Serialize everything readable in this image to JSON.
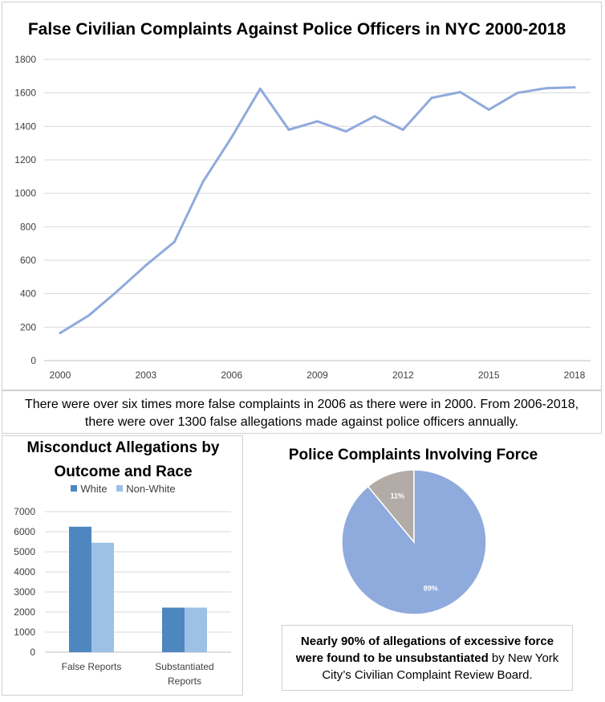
{
  "line_chart": {
    "title": "False Civilian Complaints Against Police Officers in NYC 2000-2018",
    "caption": "There were over six times more false complaints in 2006 as there were in 2000. From 2006-2018, there were over 1300 false allegations made against police officers annually."
  },
  "bar_chart": {
    "title_line1": "Misconduct Allegations by",
    "title_line2": "Outcome and Race"
  },
  "pie_chart": {
    "title": "Police Complaints Involving Force",
    "note_bold": "Nearly 90% of allegations of excessive force were found to be unsubstantiated",
    "note_rest": " by New York City’s Civilian Complaint Review Board."
  },
  "chart_data": [
    {
      "type": "line",
      "title": "False Civilian Complaints Against Police Officers in NYC 2000-2018",
      "x": [
        2000,
        2001,
        2002,
        2003,
        2004,
        2005,
        2006,
        2007,
        2008,
        2009,
        2010,
        2011,
        2012,
        2013,
        2014,
        2015,
        2016,
        2017,
        2018
      ],
      "y": [
        165,
        270,
        415,
        570,
        710,
        1070,
        1335,
        1625,
        1380,
        1430,
        1370,
        1460,
        1380,
        1570,
        1605,
        1500,
        1600,
        1628,
        1633
      ],
      "x_ticks": [
        2000,
        2003,
        2006,
        2009,
        2012,
        2015,
        2018
      ],
      "y_ticks": [
        0,
        200,
        400,
        600,
        800,
        1000,
        1200,
        1400,
        1600,
        1800
      ],
      "ylim": [
        0,
        1800
      ],
      "grid": true,
      "color": "#8faadc"
    },
    {
      "type": "bar",
      "title": "Misconduct Allegations by Outcome and Race",
      "categories": [
        "False Reports",
        "Substantiated Reports"
      ],
      "series": [
        {
          "name": "White",
          "values": [
            6250,
            2220
          ],
          "color": "#4e87c0"
        },
        {
          "name": "Non-White",
          "values": [
            5450,
            2220
          ],
          "color": "#9dc0e6"
        }
      ],
      "y_ticks": [
        0,
        1000,
        2000,
        3000,
        4000,
        5000,
        6000,
        7000
      ],
      "ylim": [
        0,
        7000
      ],
      "legend": "top",
      "grid": true
    },
    {
      "type": "pie",
      "title": "Police Complaints Involving Force",
      "slices": [
        {
          "label": "11%",
          "value": 11,
          "color": "#b2aba6"
        },
        {
          "label": "89%",
          "value": 89,
          "color": "#8faadc"
        }
      ]
    }
  ]
}
